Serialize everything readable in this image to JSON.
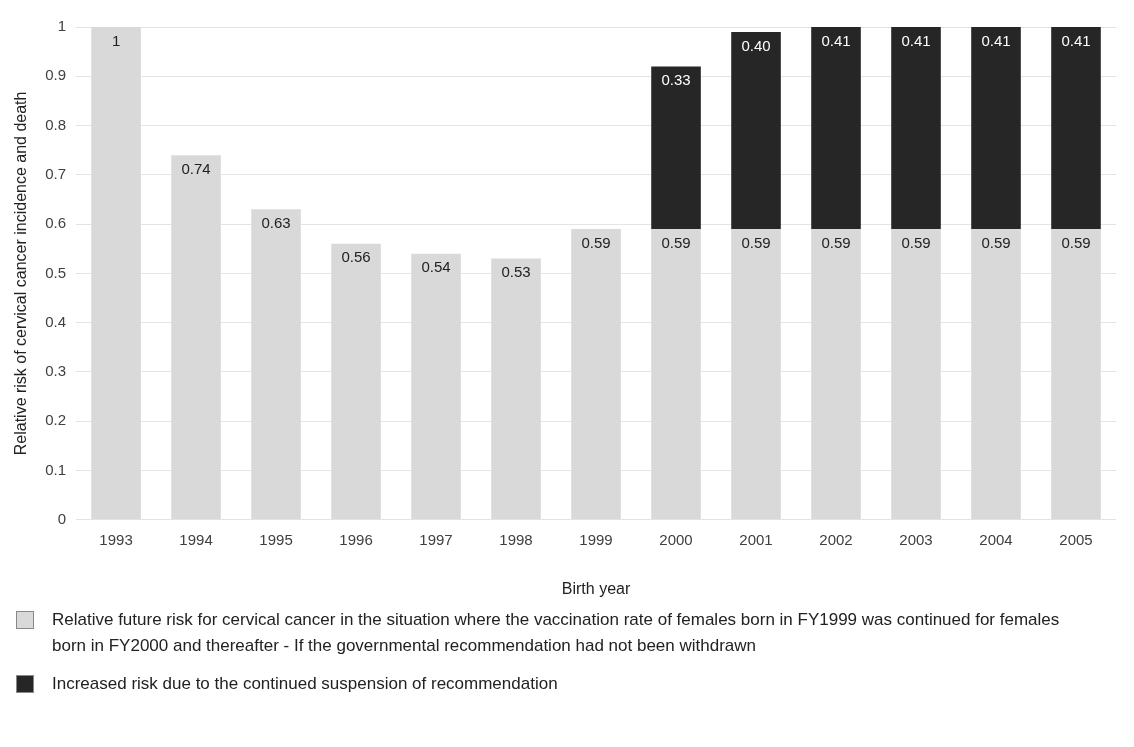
{
  "chart_data": {
    "type": "bar",
    "stacked": true,
    "xlabel": "Birth year",
    "ylabel": "Relative risk of cervical cancer incidence and death",
    "categories": [
      "1993",
      "1994",
      "1995",
      "1996",
      "1997",
      "1998",
      "1999",
      "2000",
      "2001",
      "2002",
      "2003",
      "2004",
      "2005"
    ],
    "series": [
      {
        "name": "Relative future risk for cervical cancer in the situation where the vaccination rate of females born in FY1999 was continued for females born in FY2000 and thereafter  - If the governmental recommendation had not been withdrawn",
        "color": "#d9d9d9",
        "values": [
          1,
          0.74,
          0.63,
          0.56,
          0.54,
          0.53,
          0.59,
          0.59,
          0.59,
          0.59,
          0.59,
          0.59,
          0.59
        ],
        "value_labels": [
          "1",
          "0.74",
          "0.63",
          "0.56",
          "0.54",
          "0.53",
          "0.59",
          "0.59",
          "0.59",
          "0.59",
          "0.59",
          "0.59",
          "0.59"
        ]
      },
      {
        "name": "Increased risk due to the continued suspension of recommendation",
        "color": "#262626",
        "values": [
          null,
          null,
          null,
          null,
          null,
          null,
          null,
          0.33,
          0.4,
          0.41,
          0.41,
          0.41,
          0.41
        ],
        "value_labels": [
          null,
          null,
          null,
          null,
          null,
          null,
          null,
          "0.33",
          "0.40",
          "0.41",
          "0.41",
          "0.41",
          "0.41"
        ]
      }
    ],
    "ylim": [
      0,
      1
    ],
    "yticks": [
      0,
      0.1,
      0.2,
      0.3,
      0.4,
      0.5,
      0.6,
      0.7,
      0.8,
      0.9,
      1
    ],
    "grid": "y",
    "legend": "bottom"
  }
}
